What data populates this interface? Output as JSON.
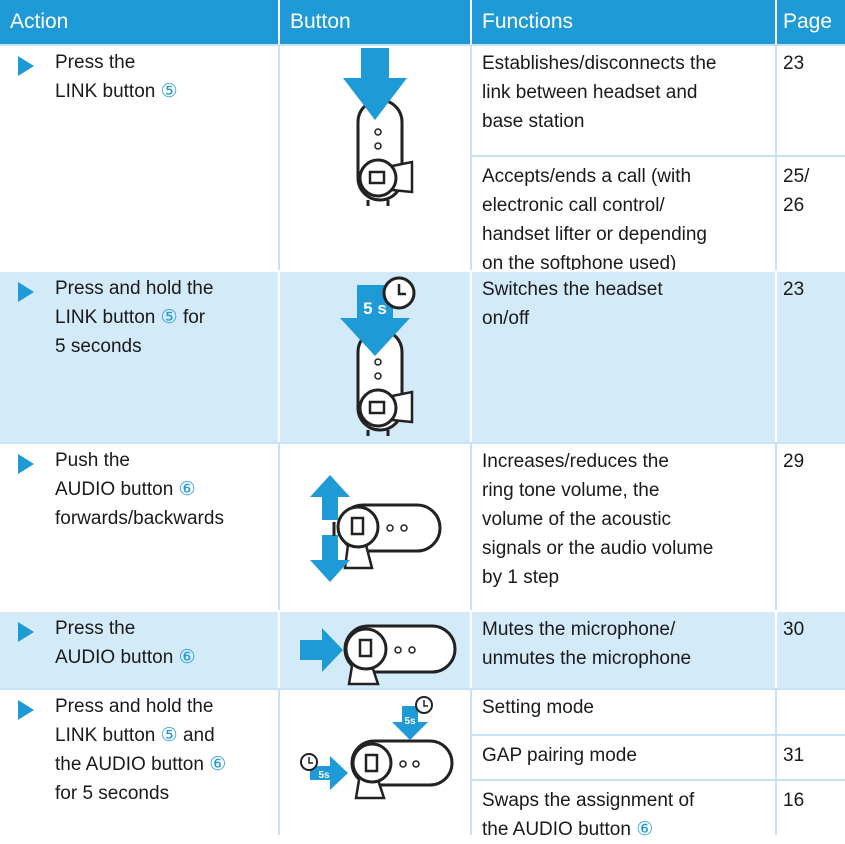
{
  "header": {
    "action": "Action",
    "button": "Button",
    "functions": "Functions",
    "page": "Page"
  },
  "rows": [
    {
      "action": [
        "Press the",
        "LINK button ⑤"
      ],
      "functions": [
        {
          "text": [
            "Establishes/disconnects the",
            "link between headset and",
            "base station"
          ],
          "page": [
            "23"
          ]
        },
        {
          "text": [
            "Accepts/ends a call (with",
            "electronic call control/",
            "handset lifter or depending",
            "on the softphone used)"
          ],
          "page": [
            "25/",
            "26"
          ]
        }
      ]
    },
    {
      "action": [
        "Press and hold the",
        "LINK button ⑤ for",
        "5 seconds"
      ],
      "button_labels": [
        "5 s"
      ],
      "functions": [
        {
          "text": [
            "Switches the headset",
            "on/off"
          ],
          "page": [
            "23"
          ]
        }
      ]
    },
    {
      "action": [
        "Push the",
        "AUDIO button ⑥",
        "forwards/backwards"
      ],
      "functions": [
        {
          "text": [
            "Increases/reduces the",
            "ring tone volume, the",
            "volume of the acoustic",
            "signals or the audio volume",
            "by 1 step"
          ],
          "page": [
            "29"
          ]
        }
      ]
    },
    {
      "action": [
        "Press the",
        "AUDIO button ⑥"
      ],
      "functions": [
        {
          "text": [
            "Mutes the microphone/",
            "unmutes the microphone"
          ],
          "page": [
            "30"
          ]
        }
      ]
    },
    {
      "action": [
        "Press and hold the",
        "LINK button ⑤ and",
        "the AUDIO button ⑥",
        "for 5 seconds"
      ],
      "button_labels": [
        "5s",
        "5s"
      ],
      "functions": [
        {
          "text": [
            "Setting mode"
          ]
        },
        {
          "text": [
            "GAP pairing mode"
          ],
          "page": [
            "31"
          ]
        },
        {
          "text": [
            "Swaps the assignment of",
            "the AUDIO button ⑥"
          ],
          "page": [
            "16"
          ]
        }
      ]
    }
  ]
}
